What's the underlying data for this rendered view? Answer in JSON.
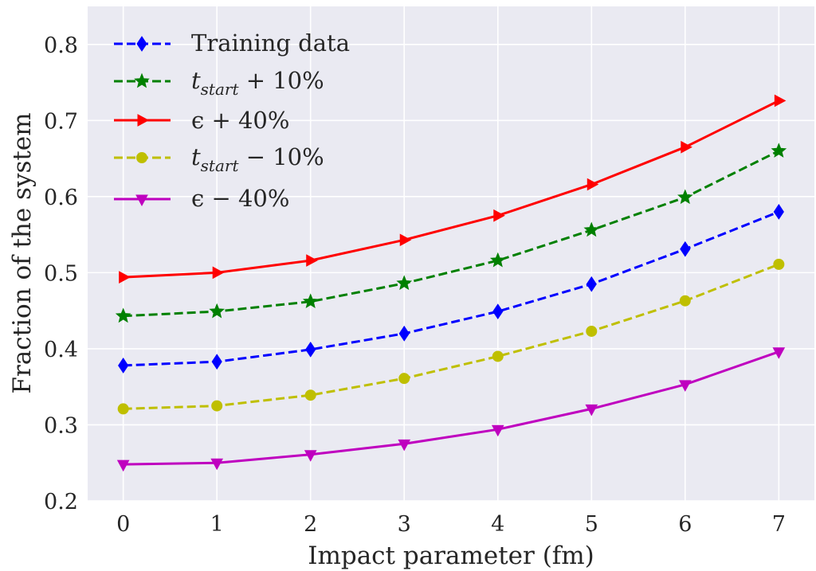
{
  "chart_data": {
    "type": "line",
    "xlabel": "Impact parameter (fm)",
    "ylabel": "Fraction of the system",
    "x": [
      0,
      1,
      2,
      3,
      4,
      5,
      6,
      7
    ],
    "xlim": [
      -0.38,
      7.38
    ],
    "ylim": [
      0.2,
      0.85
    ],
    "xticks": [
      "0",
      "1",
      "2",
      "3",
      "4",
      "5",
      "6",
      "7"
    ],
    "yticks": [
      "0.2",
      "0.3",
      "0.4",
      "0.5",
      "0.6",
      "0.7",
      "0.8"
    ],
    "grid": true,
    "legend_position": "top-left",
    "background": "#eaeaf2",
    "series": [
      {
        "key": "training",
        "name": "Training data",
        "color": "#0000ff",
        "dash": "dashed",
        "marker": "diamond",
        "values": [
          0.378,
          0.383,
          0.399,
          0.42,
          0.449,
          0.485,
          0.531,
          0.58
        ]
      },
      {
        "key": "tstart_plus",
        "name": "t_start + 10%",
        "color": "#008000",
        "dash": "dashed",
        "marker": "star",
        "values": [
          0.443,
          0.449,
          0.462,
          0.486,
          0.516,
          0.556,
          0.599,
          0.66
        ]
      },
      {
        "key": "eps_plus",
        "name": "ε + 40%",
        "color": "#ff0000",
        "dash": "solid",
        "marker": "triangle-right",
        "values": [
          0.494,
          0.5,
          0.516,
          0.543,
          0.575,
          0.616,
          0.665,
          0.726
        ]
      },
      {
        "key": "tstart_minus",
        "name": "t_start − 10%",
        "color": "#bfbf00",
        "dash": "dashed",
        "marker": "circle",
        "values": [
          0.321,
          0.325,
          0.339,
          0.361,
          0.39,
          0.423,
          0.463,
          0.511
        ]
      },
      {
        "key": "eps_minus",
        "name": "ε − 40%",
        "color": "#bf00bf",
        "dash": "solid",
        "marker": "triangle-down",
        "values": [
          0.248,
          0.25,
          0.261,
          0.275,
          0.294,
          0.321,
          0.353,
          0.396
        ]
      }
    ]
  },
  "legend": {
    "training": {
      "label": "Training data"
    },
    "tstart_plus": {
      "var": "t",
      "sub": "start",
      "rest": " + 10%"
    },
    "eps_plus": {
      "label": "ϵ + 40%"
    },
    "tstart_minus": {
      "var": "t",
      "sub": "start",
      "rest": " − 10%"
    },
    "eps_minus": {
      "label": "ϵ − 40%"
    }
  }
}
